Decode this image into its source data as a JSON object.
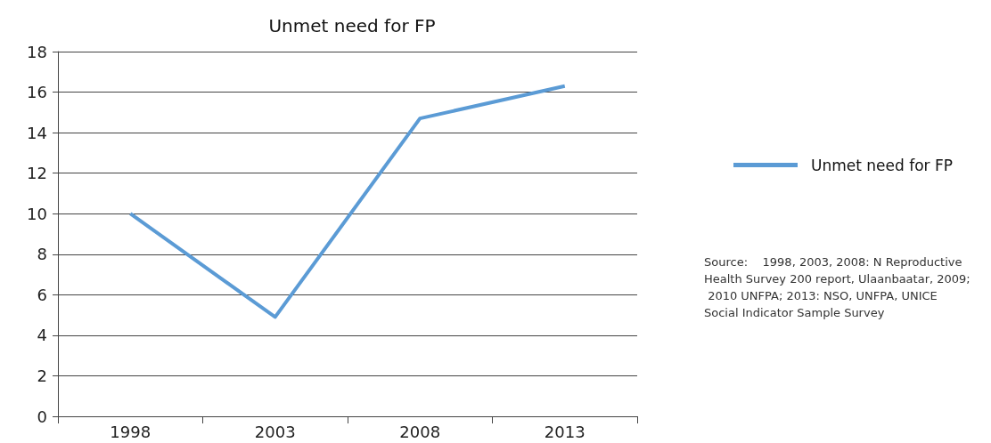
{
  "chart_data": {
    "type": "line",
    "title": "Unmet need for FP",
    "categories": [
      "1998",
      "2003",
      "2008",
      "2013"
    ],
    "series": [
      {
        "name": "Unmet need for FP",
        "color": "#5b9bd5",
        "values": [
          10.0,
          4.9,
          14.7,
          16.3
        ]
      }
    ],
    "ylim": [
      0,
      18
    ],
    "yticks": [
      0,
      2,
      4,
      6,
      8,
      10,
      12,
      14,
      16,
      18
    ],
    "grid": "y",
    "legend": "right",
    "marker": "none",
    "line_style": "solid",
    "annotations": [
      "Source:    1998, 2003, 2008: N Reproductive Health Survey 200 report, Ulaanbaatar, 2009; 2010 UNFPA; 2013: NSO, UNFPA, UNICE Social Indicator Sample Survey"
    ]
  }
}
